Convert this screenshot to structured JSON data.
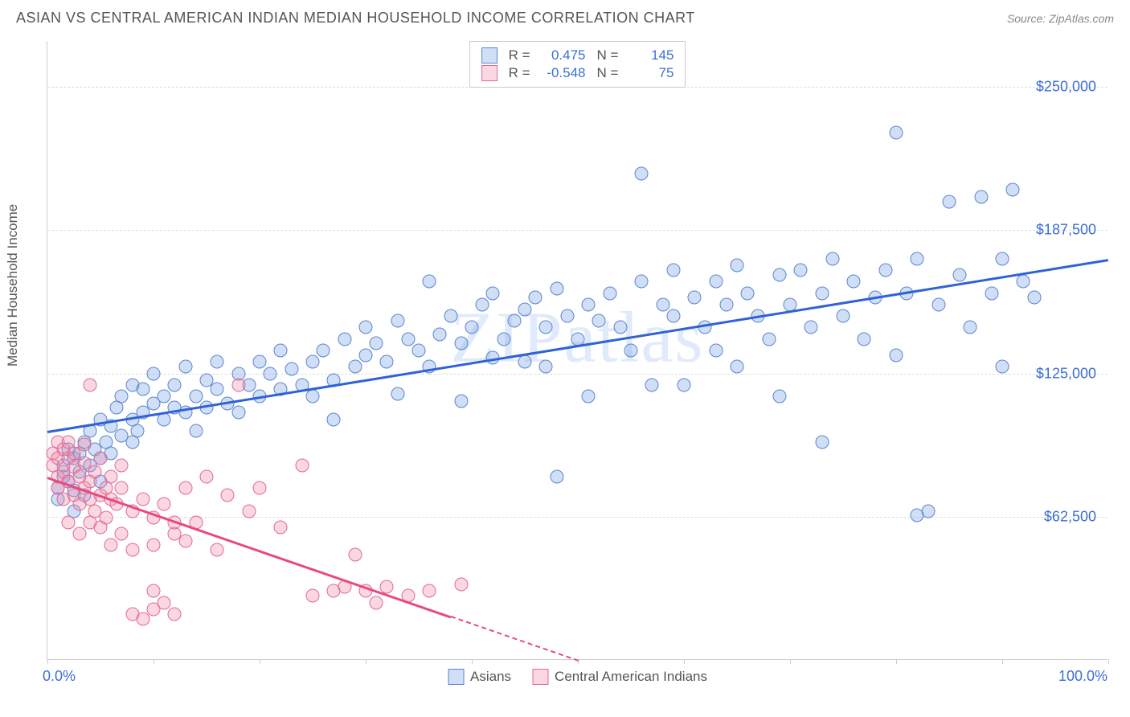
{
  "header": {
    "title": "ASIAN VS CENTRAL AMERICAN INDIAN MEDIAN HOUSEHOLD INCOME CORRELATION CHART",
    "source_prefix": "Source: ",
    "source_name": "ZipAtlas.com"
  },
  "chart": {
    "type": "scatter",
    "watermark": "ZIPatlas",
    "yaxis_title": "Median Household Income",
    "background_color": "#ffffff",
    "grid_color": "#dddddd",
    "axis_color": "#cccccc",
    "tick_label_color": "#3b6fd6",
    "axis_title_color": "#555555",
    "marker_radius": 8.5,
    "xlim": [
      0,
      100
    ],
    "ylim": [
      0,
      270000
    ],
    "y_gridlines": [
      62500,
      125000,
      187500,
      250000
    ],
    "y_tick_labels": [
      "$62,500",
      "$125,000",
      "$187,500",
      "$250,000"
    ],
    "x_ticks_at": [
      0,
      10,
      20,
      30,
      40,
      50,
      60,
      70,
      80,
      90,
      100
    ],
    "x_tick_labels": {
      "0": "0.0%",
      "100": "100.0%"
    },
    "series": [
      {
        "id": "asians",
        "label": "Asians",
        "fill_color": "rgba(120,160,230,0.35)",
        "stroke_color": "#5a86d0",
        "trend_color": "#2f62d6",
        "R": "0.475",
        "N": "145",
        "trend": {
          "x1": 0,
          "y1": 100000,
          "x2": 100,
          "y2": 175000,
          "dashed_from_x": null
        },
        "points": [
          [
            1,
            70000
          ],
          [
            1,
            75000
          ],
          [
            1.5,
            80000
          ],
          [
            1.5,
            85000
          ],
          [
            2,
            78000
          ],
          [
            2,
            92000
          ],
          [
            2.5,
            74000
          ],
          [
            2.5,
            88000
          ],
          [
            2.5,
            65000
          ],
          [
            3,
            90000
          ],
          [
            3,
            82000
          ],
          [
            3.5,
            95000
          ],
          [
            3.5,
            72000
          ],
          [
            4,
            85000
          ],
          [
            4,
            100000
          ],
          [
            4.5,
            92000
          ],
          [
            5,
            88000
          ],
          [
            5,
            105000
          ],
          [
            5,
            78000
          ],
          [
            5.5,
            95000
          ],
          [
            6,
            102000
          ],
          [
            6,
            90000
          ],
          [
            6.5,
            110000
          ],
          [
            7,
            98000
          ],
          [
            7,
            115000
          ],
          [
            8,
            105000
          ],
          [
            8,
            95000
          ],
          [
            8,
            120000
          ],
          [
            8.5,
            100000
          ],
          [
            9,
            108000
          ],
          [
            9,
            118000
          ],
          [
            10,
            112000
          ],
          [
            10,
            125000
          ],
          [
            11,
            105000
          ],
          [
            11,
            115000
          ],
          [
            12,
            120000
          ],
          [
            12,
            110000
          ],
          [
            13,
            108000
          ],
          [
            13,
            128000
          ],
          [
            14,
            115000
          ],
          [
            14,
            100000
          ],
          [
            15,
            122000
          ],
          [
            15,
            110000
          ],
          [
            16,
            118000
          ],
          [
            16,
            130000
          ],
          [
            17,
            112000
          ],
          [
            18,
            125000
          ],
          [
            18,
            108000
          ],
          [
            19,
            120000
          ],
          [
            20,
            115000
          ],
          [
            20,
            130000
          ],
          [
            21,
            125000
          ],
          [
            22,
            118000
          ],
          [
            22,
            135000
          ],
          [
            23,
            127000
          ],
          [
            24,
            120000
          ],
          [
            25,
            130000
          ],
          [
            25,
            115000
          ],
          [
            26,
            135000
          ],
          [
            27,
            122000
          ],
          [
            27,
            105000
          ],
          [
            28,
            140000
          ],
          [
            29,
            128000
          ],
          [
            30,
            133000
          ],
          [
            30,
            145000
          ],
          [
            31,
            138000
          ],
          [
            32,
            130000
          ],
          [
            33,
            116000
          ],
          [
            33,
            148000
          ],
          [
            34,
            140000
          ],
          [
            35,
            135000
          ],
          [
            36,
            165000
          ],
          [
            36,
            128000
          ],
          [
            37,
            142000
          ],
          [
            38,
            150000
          ],
          [
            39,
            113000
          ],
          [
            39,
            138000
          ],
          [
            40,
            145000
          ],
          [
            41,
            155000
          ],
          [
            42,
            132000
          ],
          [
            42,
            160000
          ],
          [
            43,
            140000
          ],
          [
            44,
            148000
          ],
          [
            45,
            153000
          ],
          [
            45,
            130000
          ],
          [
            46,
            158000
          ],
          [
            47,
            128000
          ],
          [
            47,
            145000
          ],
          [
            48,
            162000
          ],
          [
            48,
            80000
          ],
          [
            49,
            150000
          ],
          [
            50,
            140000
          ],
          [
            51,
            115000
          ],
          [
            51,
            155000
          ],
          [
            52,
            148000
          ],
          [
            53,
            160000
          ],
          [
            54,
            145000
          ],
          [
            55,
            135000
          ],
          [
            56,
            165000
          ],
          [
            56,
            212000
          ],
          [
            57,
            120000
          ],
          [
            58,
            155000
          ],
          [
            59,
            150000
          ],
          [
            59,
            170000
          ],
          [
            60,
            120000
          ],
          [
            61,
            158000
          ],
          [
            62,
            145000
          ],
          [
            63,
            165000
          ],
          [
            63,
            135000
          ],
          [
            64,
            155000
          ],
          [
            65,
            172000
          ],
          [
            65,
            128000
          ],
          [
            66,
            160000
          ],
          [
            67,
            150000
          ],
          [
            68,
            140000
          ],
          [
            69,
            168000
          ],
          [
            69,
            115000
          ],
          [
            70,
            155000
          ],
          [
            71,
            170000
          ],
          [
            72,
            145000
          ],
          [
            73,
            95000
          ],
          [
            73,
            160000
          ],
          [
            74,
            175000
          ],
          [
            75,
            150000
          ],
          [
            76,
            165000
          ],
          [
            77,
            140000
          ],
          [
            78,
            158000
          ],
          [
            79,
            170000
          ],
          [
            80,
            133000
          ],
          [
            80,
            230000
          ],
          [
            81,
            160000
          ],
          [
            82,
            175000
          ],
          [
            82,
            63000
          ],
          [
            83,
            65000
          ],
          [
            84,
            155000
          ],
          [
            85,
            200000
          ],
          [
            86,
            168000
          ],
          [
            87,
            145000
          ],
          [
            88,
            202000
          ],
          [
            89,
            160000
          ],
          [
            90,
            175000
          ],
          [
            90,
            128000
          ],
          [
            91,
            205000
          ],
          [
            92,
            165000
          ],
          [
            93,
            158000
          ]
        ]
      },
      {
        "id": "cai",
        "label": "Central American Indians",
        "fill_color": "rgba(240,140,170,0.35)",
        "stroke_color": "#e06a94",
        "trend_color": "#e84a7a",
        "R": "-0.548",
        "N": "75",
        "trend": {
          "x1": 0,
          "y1": 80000,
          "x2": 50,
          "y2": 0,
          "dashed_from_x": 38
        },
        "points": [
          [
            0.5,
            85000
          ],
          [
            0.5,
            90000
          ],
          [
            1,
            88000
          ],
          [
            1,
            95000
          ],
          [
            1,
            75000
          ],
          [
            1,
            80000
          ],
          [
            1.5,
            92000
          ],
          [
            1.5,
            82000
          ],
          [
            1.5,
            70000
          ],
          [
            2,
            88000
          ],
          [
            2,
            78000
          ],
          [
            2,
            95000
          ],
          [
            2,
            60000
          ],
          [
            2.5,
            72000
          ],
          [
            2.5,
            84000
          ],
          [
            2.5,
            90000
          ],
          [
            3,
            68000
          ],
          [
            3,
            80000
          ],
          [
            3,
            55000
          ],
          [
            3.5,
            75000
          ],
          [
            3.5,
            86000
          ],
          [
            3.5,
            94000
          ],
          [
            4,
            70000
          ],
          [
            4,
            78000
          ],
          [
            4,
            60000
          ],
          [
            4,
            120000
          ],
          [
            4.5,
            82000
          ],
          [
            4.5,
            65000
          ],
          [
            5,
            72000
          ],
          [
            5,
            88000
          ],
          [
            5,
            58000
          ],
          [
            5.5,
            75000
          ],
          [
            5.5,
            62000
          ],
          [
            6,
            80000
          ],
          [
            6,
            70000
          ],
          [
            6,
            50000
          ],
          [
            6.5,
            68000
          ],
          [
            7,
            75000
          ],
          [
            7,
            85000
          ],
          [
            7,
            55000
          ],
          [
            8,
            65000
          ],
          [
            8,
            48000
          ],
          [
            8,
            20000
          ],
          [
            9,
            70000
          ],
          [
            9,
            18000
          ],
          [
            10,
            62000
          ],
          [
            10,
            50000
          ],
          [
            10,
            30000
          ],
          [
            10,
            22000
          ],
          [
            11,
            68000
          ],
          [
            11,
            25000
          ],
          [
            12,
            55000
          ],
          [
            12,
            60000
          ],
          [
            12,
            20000
          ],
          [
            13,
            52000
          ],
          [
            13,
            75000
          ],
          [
            14,
            60000
          ],
          [
            15,
            80000
          ],
          [
            16,
            48000
          ],
          [
            17,
            72000
          ],
          [
            18,
            120000
          ],
          [
            19,
            65000
          ],
          [
            20,
            75000
          ],
          [
            22,
            58000
          ],
          [
            24,
            85000
          ],
          [
            25,
            28000
          ],
          [
            27,
            30000
          ],
          [
            28,
            32000
          ],
          [
            29,
            46000
          ],
          [
            30,
            30000
          ],
          [
            31,
            25000
          ],
          [
            32,
            32000
          ],
          [
            34,
            28000
          ],
          [
            36,
            30000
          ],
          [
            39,
            33000
          ]
        ]
      }
    ],
    "stat_box": {
      "R_label": "R =",
      "N_label": "N ="
    },
    "legend_labels": [
      "Asians",
      "Central American Indians"
    ]
  }
}
